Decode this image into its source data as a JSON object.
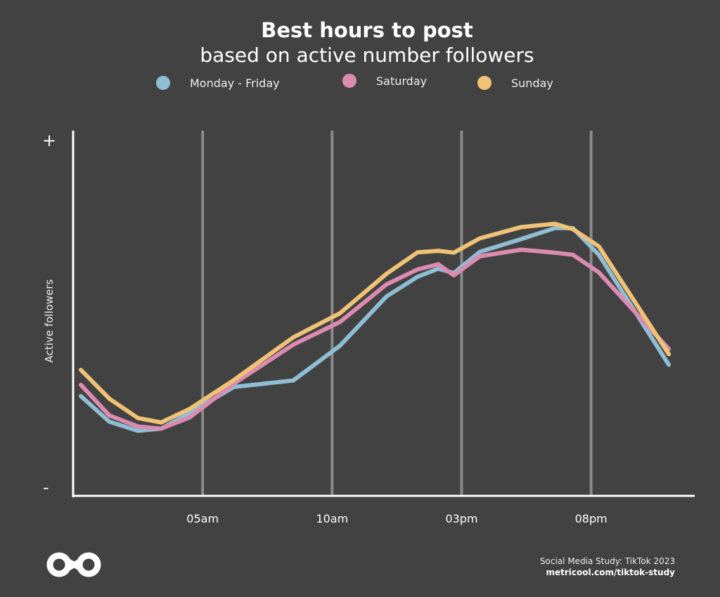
{
  "header": {
    "title": "Best hours to post",
    "subtitle": "based on active number followers"
  },
  "legend": [
    {
      "label": "Monday - Friday",
      "color": "#8fbdd3"
    },
    {
      "label": "Saturday",
      "color": "#dc8bb0"
    },
    {
      "label": "Sunday",
      "color": "#efc276"
    }
  ],
  "axis": {
    "ylabel": "Active followers",
    "ytop": "+",
    "ybottom": "-"
  },
  "footer": {
    "source": "Social Media Study: TikTok 2023",
    "link": "metricool.com/tiktok-study"
  },
  "logo": {
    "icon": "infinity-logo-icon"
  },
  "chart_data": {
    "type": "line",
    "ylabel": "Active followers",
    "xlabel": "",
    "x_tick_labels": [
      "05am",
      "10am",
      "03pm",
      "08pm"
    ],
    "x_ticks_hours": [
      5,
      10,
      15,
      20
    ],
    "xlim": [
      0,
      24
    ],
    "ylim": [
      0,
      100
    ],
    "grid": "vertical lines at tick labels",
    "legend_position": "top",
    "x": [
      0.3,
      1.4,
      2.5,
      3.4,
      4.5,
      6.2,
      8.5,
      10.3,
      12.1,
      13.3,
      14.1,
      14.7,
      15.7,
      17.3,
      18.6,
      19.3,
      20.3,
      23.0
    ],
    "series": [
      {
        "name": "Monday - Friday",
        "color": "#8fbdd3",
        "values": [
          27.3,
          20.3,
          17.8,
          18.4,
          22.7,
          29.8,
          31.6,
          41.1,
          54.6,
          60.0,
          62.2,
          61.0,
          66.8,
          70.3,
          73.3,
          73.3,
          66.0,
          35.9
        ]
      },
      {
        "name": "Saturday",
        "color": "#dc8bb0",
        "values": [
          30.4,
          22.0,
          19.0,
          18.4,
          21.5,
          30.7,
          41.4,
          47.6,
          57.9,
          62.0,
          63.4,
          60.4,
          65.6,
          67.4,
          66.6,
          66.0,
          61.2,
          40.2
        ]
      },
      {
        "name": "Sunday",
        "color": "#efc276",
        "values": [
          34.5,
          26.6,
          21.3,
          20.1,
          23.8,
          31.7,
          43.4,
          50.0,
          60.8,
          66.7,
          67.1,
          66.6,
          70.5,
          73.6,
          74.5,
          73.0,
          68.3,
          38.8
        ]
      }
    ]
  }
}
